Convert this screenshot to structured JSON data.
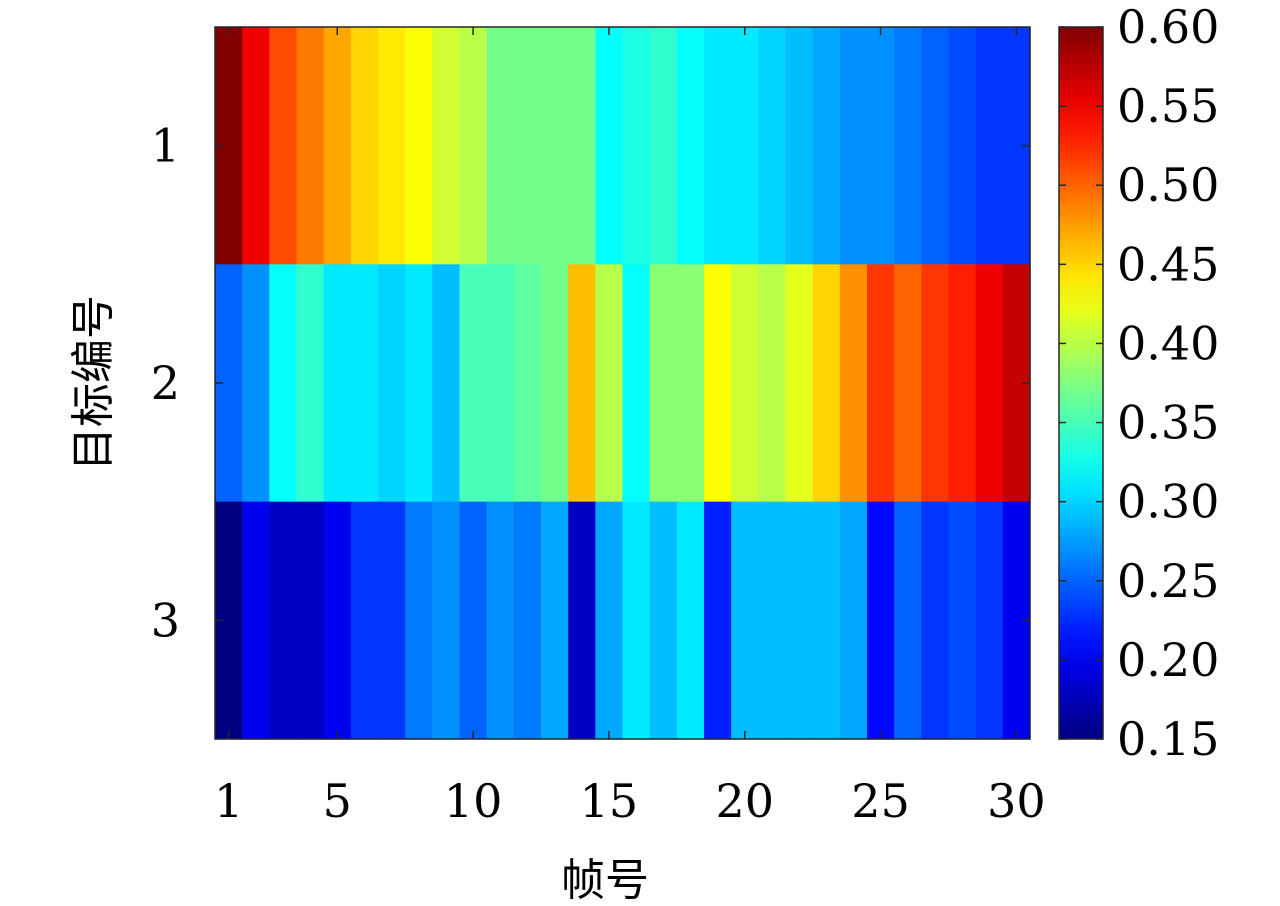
{
  "chart_data": {
    "type": "heatmap",
    "xlabel": "帧号",
    "ylabel": "目标编号",
    "x_tick_labels": [
      "1",
      "5",
      "10",
      "15",
      "20",
      "25",
      "30"
    ],
    "x_tick_values": [
      1,
      5,
      10,
      15,
      20,
      25,
      30
    ],
    "y_tick_labels": [
      "1",
      "2",
      "3"
    ],
    "rows": [
      1,
      2,
      3
    ],
    "columns": [
      1,
      2,
      3,
      4,
      5,
      6,
      7,
      8,
      9,
      10,
      11,
      12,
      13,
      14,
      15,
      16,
      17,
      18,
      19,
      20,
      21,
      22,
      23,
      24,
      25,
      26,
      27,
      28,
      29,
      30
    ],
    "values": [
      [
        0.6,
        0.55,
        0.51,
        0.49,
        0.47,
        0.45,
        0.44,
        0.43,
        0.41,
        0.4,
        0.37,
        0.37,
        0.37,
        0.37,
        0.32,
        0.33,
        0.34,
        0.32,
        0.31,
        0.31,
        0.3,
        0.29,
        0.28,
        0.27,
        0.27,
        0.26,
        0.25,
        0.24,
        0.23,
        0.23
      ],
      [
        0.25,
        0.27,
        0.32,
        0.34,
        0.31,
        0.31,
        0.3,
        0.31,
        0.29,
        0.35,
        0.35,
        0.36,
        0.37,
        0.46,
        0.4,
        0.32,
        0.38,
        0.38,
        0.43,
        0.41,
        0.4,
        0.42,
        0.45,
        0.48,
        0.52,
        0.5,
        0.52,
        0.53,
        0.55,
        0.57
      ],
      [
        0.15,
        0.2,
        0.18,
        0.18,
        0.2,
        0.23,
        0.23,
        0.26,
        0.27,
        0.25,
        0.27,
        0.26,
        0.28,
        0.18,
        0.28,
        0.31,
        0.29,
        0.31,
        0.22,
        0.29,
        0.29,
        0.29,
        0.29,
        0.28,
        0.21,
        0.25,
        0.23,
        0.24,
        0.23,
        0.2
      ]
    ],
    "colorbar": {
      "colormap": "jet",
      "min": 0.15,
      "max": 0.6,
      "tick_labels": [
        "0.15",
        "0.20",
        "0.25",
        "0.30",
        "0.35",
        "0.40",
        "0.45",
        "0.50",
        "0.55",
        "0.60"
      ],
      "tick_values": [
        0.15,
        0.2,
        0.25,
        0.3,
        0.35,
        0.4,
        0.45,
        0.5,
        0.55,
        0.6
      ]
    },
    "grid": false
  }
}
